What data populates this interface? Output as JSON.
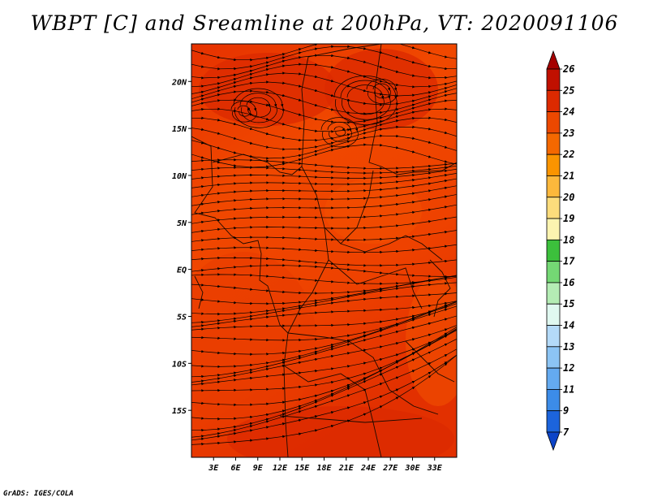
{
  "title": "WBPT [C] and Sreamline at 200hPa, VT: 2020091106",
  "footer": "GrADS: IGES/COLA",
  "map": {
    "region_lon_range": [
      0,
      36
    ],
    "region_lat_range": [
      -20,
      24
    ],
    "field": "WBPT",
    "level": "200hPa",
    "y_tick_labels": [
      "20N",
      "15N",
      "10N",
      "5N",
      "EQ",
      "5S",
      "10S",
      "15S"
    ],
    "y_tick_values": [
      20,
      15,
      10,
      5,
      0,
      -5,
      -10,
      -15
    ],
    "x_tick_labels": [
      "3E",
      "6E",
      "9E",
      "12E",
      "15E",
      "18E",
      "21E",
      "24E",
      "27E",
      "30E",
      "33E"
    ],
    "x_tick_values": [
      3,
      6,
      9,
      12,
      15,
      18,
      21,
      24,
      27,
      30,
      33
    ]
  },
  "colorbar": {
    "labels": [
      "26",
      "25",
      "24",
      "23",
      "22",
      "21",
      "20",
      "19",
      "18",
      "17",
      "16",
      "15",
      "14",
      "13",
      "12",
      "11",
      "9",
      "7"
    ],
    "colors": [
      "#a50000",
      "#c01000",
      "#dc2a00",
      "#ec4800",
      "#f46800",
      "#fa9400",
      "#fcb83c",
      "#fcdc7c",
      "#fcf4b0",
      "#3cc03c",
      "#74d874",
      "#b4ecb4",
      "#e0f8f0",
      "#b4daf8",
      "#8cc4f4",
      "#64aaf0",
      "#3c8ce8",
      "#1c64dc",
      "#0c44c8"
    ]
  }
}
